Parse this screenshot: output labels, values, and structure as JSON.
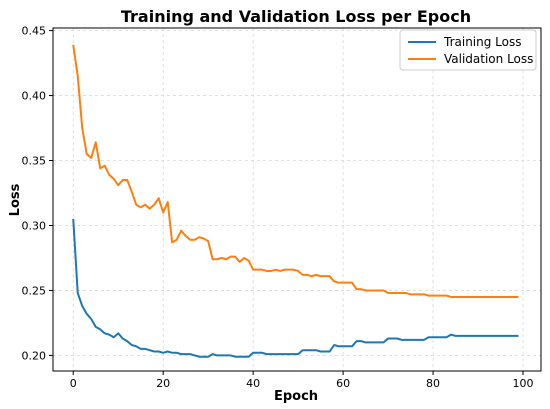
{
  "chart_data": {
    "type": "line",
    "title": "Training and Validation Loss per Epoch",
    "xlabel": "Epoch",
    "ylabel": "Loss",
    "xlim": [
      -4.5,
      104
    ],
    "ylim": [
      0.188,
      0.452
    ],
    "xticks": [
      0,
      20,
      40,
      60,
      80,
      100
    ],
    "yticks": [
      0.2,
      0.25,
      0.3,
      0.35,
      0.4,
      0.45
    ],
    "ytick_labels": [
      "0.20",
      "0.25",
      "0.30",
      "0.35",
      "0.40",
      "0.45"
    ],
    "grid": true,
    "legend_position": "top-right",
    "x": [
      0,
      1,
      2,
      3,
      4,
      5,
      6,
      7,
      8,
      9,
      10,
      11,
      12,
      13,
      14,
      15,
      16,
      17,
      18,
      19,
      20,
      21,
      22,
      23,
      24,
      25,
      26,
      27,
      28,
      29,
      30,
      31,
      32,
      33,
      34,
      35,
      36,
      37,
      38,
      39,
      40,
      41,
      42,
      43,
      44,
      45,
      46,
      47,
      48,
      49,
      50,
      51,
      52,
      53,
      54,
      55,
      56,
      57,
      58,
      59,
      60,
      61,
      62,
      63,
      64,
      65,
      66,
      67,
      68,
      69,
      70,
      71,
      72,
      73,
      74,
      75,
      76,
      77,
      78,
      79,
      80,
      81,
      82,
      83,
      84,
      85,
      86,
      87,
      88,
      89,
      90,
      91,
      92,
      93,
      94,
      95,
      96,
      97,
      98,
      99
    ],
    "series": [
      {
        "name": "Training Loss",
        "color": "#1f77b4",
        "values": [
          0.305,
          0.248,
          0.238,
          0.232,
          0.228,
          0.222,
          0.22,
          0.217,
          0.216,
          0.214,
          0.217,
          0.213,
          0.211,
          0.208,
          0.207,
          0.205,
          0.205,
          0.204,
          0.203,
          0.203,
          0.202,
          0.203,
          0.202,
          0.202,
          0.201,
          0.201,
          0.201,
          0.2,
          0.199,
          0.199,
          0.199,
          0.201,
          0.2,
          0.2,
          0.2,
          0.2,
          0.199,
          0.199,
          0.199,
          0.199,
          0.202,
          0.202,
          0.202,
          0.201,
          0.201,
          0.201,
          0.201,
          0.201,
          0.201,
          0.201,
          0.201,
          0.204,
          0.204,
          0.204,
          0.204,
          0.203,
          0.203,
          0.203,
          0.208,
          0.207,
          0.207,
          0.207,
          0.207,
          0.211,
          0.211,
          0.21,
          0.21,
          0.21,
          0.21,
          0.21,
          0.213,
          0.213,
          0.213,
          0.212,
          0.212,
          0.212,
          0.212,
          0.212,
          0.212,
          0.214,
          0.214,
          0.214,
          0.214,
          0.214,
          0.216,
          0.215,
          0.215,
          0.215,
          0.215,
          0.215,
          0.215,
          0.215,
          0.215,
          0.215,
          0.215,
          0.215,
          0.215,
          0.215,
          0.215,
          0.215
        ]
      },
      {
        "name": "Validation Loss",
        "color": "#ff7f0e",
        "values": [
          0.439,
          0.415,
          0.375,
          0.355,
          0.352,
          0.364,
          0.344,
          0.346,
          0.339,
          0.336,
          0.331,
          0.335,
          0.335,
          0.326,
          0.316,
          0.314,
          0.316,
          0.313,
          0.316,
          0.321,
          0.31,
          0.318,
          0.287,
          0.289,
          0.296,
          0.292,
          0.289,
          0.289,
          0.291,
          0.29,
          0.288,
          0.274,
          0.274,
          0.275,
          0.274,
          0.276,
          0.276,
          0.272,
          0.275,
          0.273,
          0.266,
          0.266,
          0.266,
          0.265,
          0.265,
          0.266,
          0.265,
          0.266,
          0.266,
          0.266,
          0.265,
          0.262,
          0.262,
          0.261,
          0.262,
          0.261,
          0.261,
          0.261,
          0.257,
          0.256,
          0.256,
          0.256,
          0.256,
          0.251,
          0.251,
          0.25,
          0.25,
          0.25,
          0.25,
          0.25,
          0.248,
          0.248,
          0.248,
          0.248,
          0.248,
          0.247,
          0.247,
          0.247,
          0.247,
          0.246,
          0.246,
          0.246,
          0.246,
          0.246,
          0.245,
          0.245,
          0.245,
          0.245,
          0.245,
          0.245,
          0.245,
          0.245,
          0.245,
          0.245,
          0.245,
          0.245,
          0.245,
          0.245,
          0.245,
          0.245
        ]
      }
    ]
  }
}
